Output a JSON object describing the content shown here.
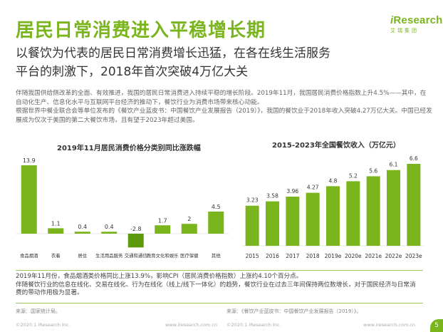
{
  "header": {
    "title": "居民日常消费进入平稳增长期",
    "logo_text_i": "i",
    "logo_text_rest": "Research",
    "logo_sub": "艾瑞集团",
    "subtitle_line1": "以餐饮为代表的居民日常消费增长迅猛，在各在线生活服务",
    "subtitle_line2": "平台的刺激下，2018年首次突破4万亿大关"
  },
  "intro": {
    "p1": "伴随我国供给侧改革的全面、有效推进，我国的居民日常消费进入持续平稳的增长阶段。2019年11月，我国居民消费价格指数上升4.5%——其中，在自动化生产、信息化水平与互联网平台经济的推动下，餐饮行业为消费市场带来核心动能。",
    "p2": "根据世界中餐业联合会等单位发布的《餐饮产业蓝皮书：中国餐饮产业发展报告（2019）》，我国的餐饮业于2018年收入突破4.27万亿大关。中国已经发展成为仅次于美国的第二大餐饮市场，且有望于2023年超过美国。"
  },
  "summary": {
    "p1": "2019年11月份，食品烟酒类价格同比上涨13.9%，影响CPI（居民消费价格指数）上涨约4.10个百分点。",
    "p2": "伴随餐饮行业的信息在线化、交易在线化、行为在线化（线上/线下一体化）的趋势，餐饮行业在过去三年间保持两位数增长，对于国民经济与日常消费的带动作用极为显著。"
  },
  "footer": {
    "source_left": "来源：国家统计局。",
    "source_right": "来源：《餐饮产业蓝皮书：中国餐饮产业发展报告（2019）》。",
    "copyright": "©2020.1 iResearch Inc.",
    "url": "www.iresearch.com.cn",
    "page_number": "5"
  },
  "colors": {
    "brand_green": "#7AB51D",
    "bar_light": "#7AB51D",
    "bar_dark": "#5E9A0E"
  },
  "chart_data": [
    {
      "type": "bar",
      "title": "2019年11月居民消费价格分类别同比涨跌幅",
      "categories": [
        "食品烟酒",
        "衣着",
        "居住",
        "生活用品服务",
        "交通和通信",
        "教育文化和娱乐",
        "医疗保健",
        "其他"
      ],
      "values": [
        13.9,
        1.1,
        0.4,
        0.4,
        -2.8,
        1.7,
        2.0,
        4.5
      ],
      "value_labels": [
        "13.9",
        "1.1",
        "0.4",
        "0.4",
        "-2.8",
        "1.7",
        "2",
        "4.5"
      ],
      "ylim": [
        -3,
        14
      ],
      "grid": false,
      "legend": "none"
    },
    {
      "type": "bar",
      "title": "2015-2023年全国餐饮收入（万亿元）",
      "categories": [
        "2015",
        "2016",
        "2017",
        "2018",
        "2019e",
        "2020e",
        "2021e",
        "2022e",
        "2023e"
      ],
      "values": [
        3.23,
        3.58,
        3.96,
        4.27,
        4.8,
        5.2,
        5.6,
        6.1,
        6.6
      ],
      "value_labels": [
        "3.23",
        "3.58",
        "3.96",
        "4.27",
        "4.8",
        "5.2",
        "5.6",
        "6.1",
        "6.6"
      ],
      "ylim": [
        0,
        7
      ],
      "grid": false,
      "legend": "none"
    }
  ]
}
